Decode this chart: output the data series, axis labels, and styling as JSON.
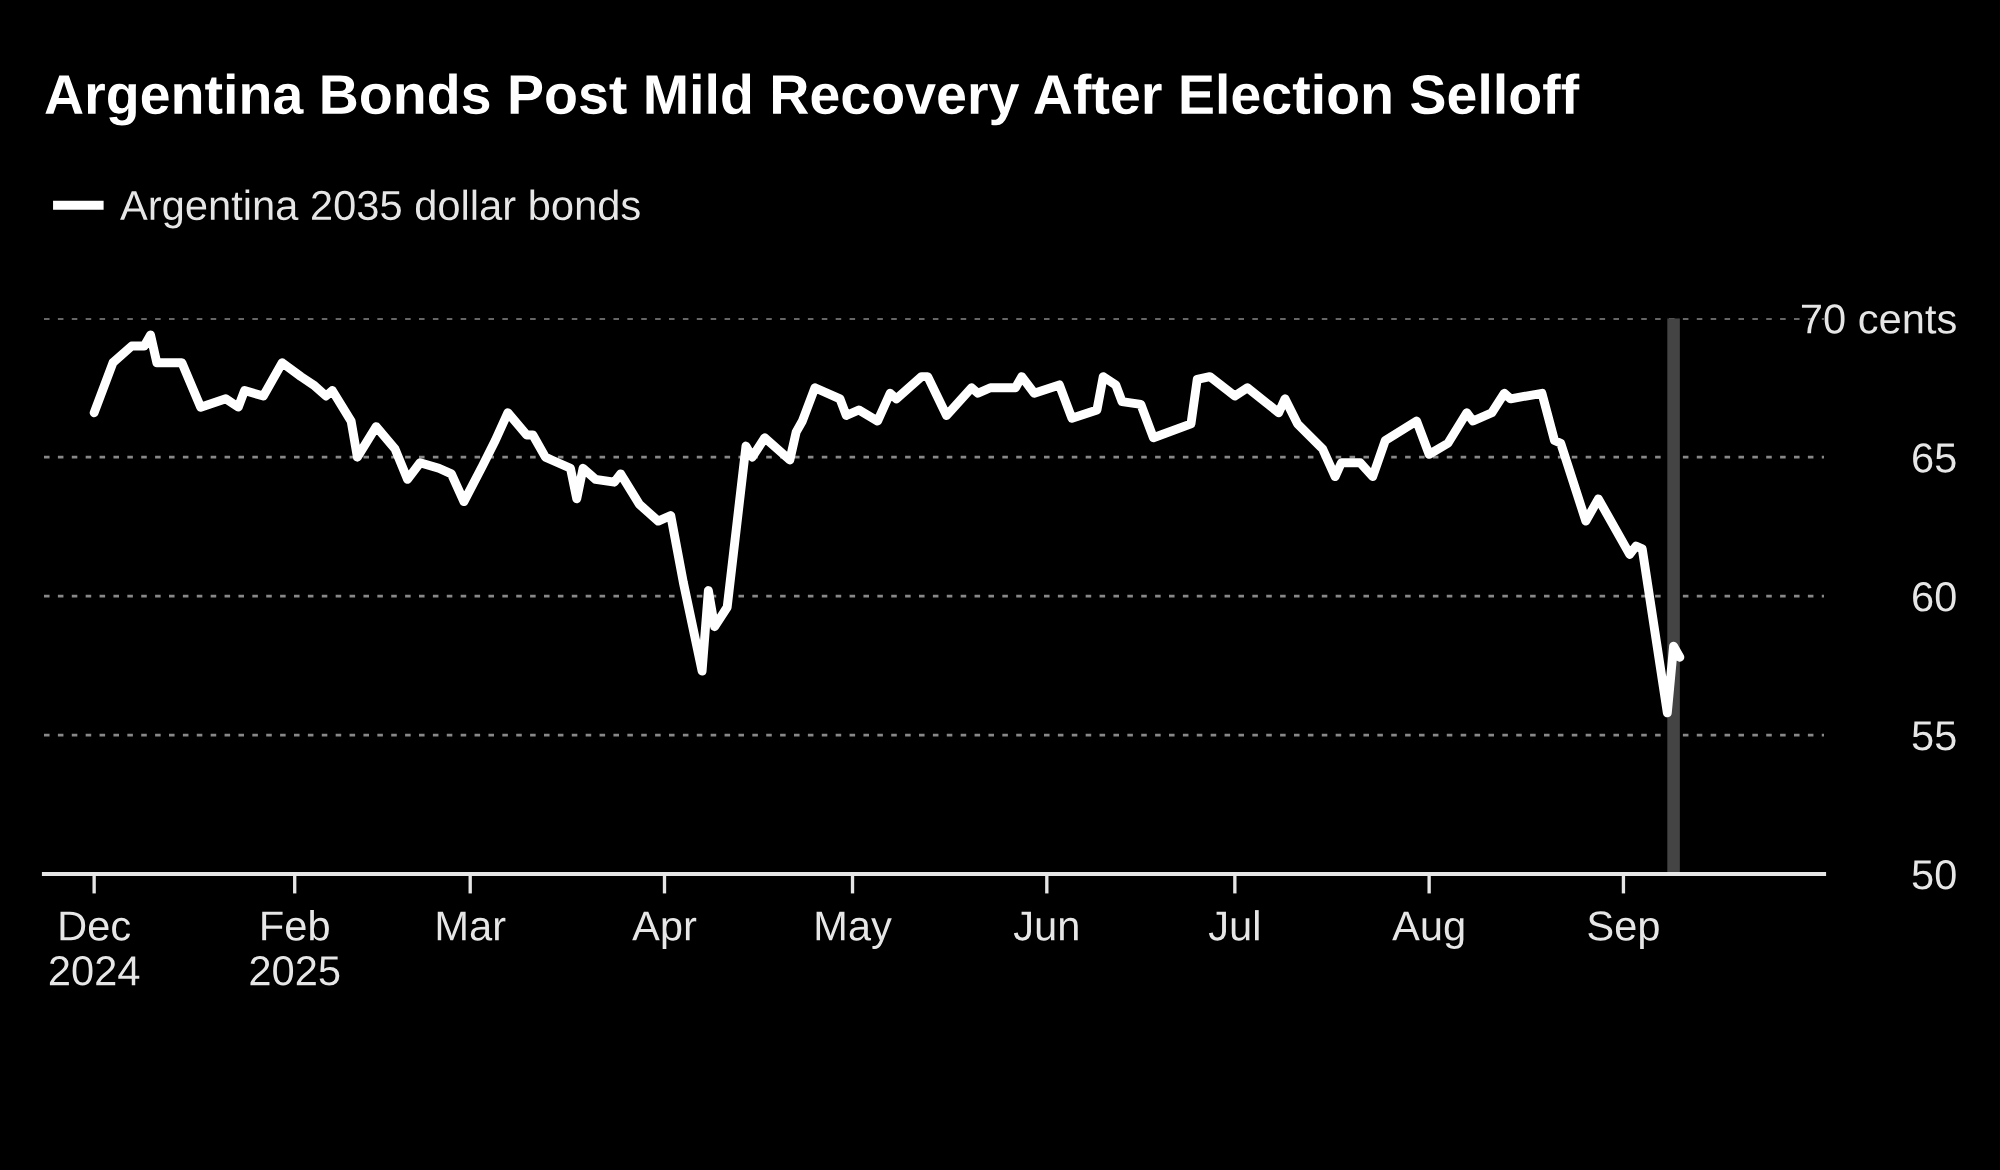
{
  "chart_data": {
    "type": "line",
    "title": "Argentina Bonds Post Mild Recovery After Election Selloff",
    "x": [
      "2024-12-31",
      "2025-01-03",
      "2025-01-06",
      "2025-01-08",
      "2025-01-09",
      "2025-01-10",
      "2025-01-14",
      "2025-01-17",
      "2025-01-21",
      "2025-01-23",
      "2025-01-24",
      "2025-01-27",
      "2025-01-30",
      "2025-02-02",
      "2025-02-04",
      "2025-02-06",
      "2025-02-07",
      "2025-02-10",
      "2025-02-11",
      "2025-02-14",
      "2025-02-17",
      "2025-02-19",
      "2025-02-21",
      "2025-02-24",
      "2025-02-26",
      "2025-02-28",
      "2025-03-03",
      "2025-03-05",
      "2025-03-07",
      "2025-03-10",
      "2025-03-11",
      "2025-03-13",
      "2025-03-14",
      "2025-03-17",
      "2025-03-18",
      "2025-03-19",
      "2025-03-21",
      "2025-03-24",
      "2025-03-25",
      "2025-03-28",
      "2025-03-31",
      "2025-04-02",
      "2025-04-04",
      "2025-04-07",
      "2025-04-08",
      "2025-04-09",
      "2025-04-11",
      "2025-04-14",
      "2025-04-15",
      "2025-04-17",
      "2025-04-21",
      "2025-04-22",
      "2025-04-23",
      "2025-04-25",
      "2025-04-29",
      "2025-04-30",
      "2025-05-02",
      "2025-05-05",
      "2025-05-07",
      "2025-05-08",
      "2025-05-12",
      "2025-05-13",
      "2025-05-16",
      "2025-05-20",
      "2025-05-21",
      "2025-05-23",
      "2025-05-27",
      "2025-05-28",
      "2025-05-30",
      "2025-06-03",
      "2025-06-05",
      "2025-06-09",
      "2025-06-10",
      "2025-06-12",
      "2025-06-13",
      "2025-06-16",
      "2025-06-18",
      "2025-06-24",
      "2025-06-25",
      "2025-06-27",
      "2025-07-01",
      "2025-07-03",
      "2025-07-08",
      "2025-07-09",
      "2025-07-11",
      "2025-07-15",
      "2025-07-17",
      "2025-07-18",
      "2025-07-21",
      "2025-07-23",
      "2025-07-25",
      "2025-07-30",
      "2025-08-01",
      "2025-08-04",
      "2025-08-07",
      "2025-08-08",
      "2025-08-11",
      "2025-08-13",
      "2025-08-14",
      "2025-08-19",
      "2025-08-21",
      "2025-08-22",
      "2025-08-26",
      "2025-08-28",
      "2025-09-02",
      "2025-09-03",
      "2025-09-04",
      "2025-09-08",
      "2025-09-09",
      "2025-09-10"
    ],
    "series": [
      {
        "name": "Argentina 2035 dollar bonds",
        "color": "#ffffff",
        "values": [
          66.6,
          68.4,
          69.0,
          69.0,
          69.4,
          68.4,
          68.4,
          66.8,
          67.1,
          66.8,
          67.4,
          67.2,
          68.4,
          67.9,
          67.6,
          67.2,
          67.4,
          66.3,
          65.0,
          66.1,
          65.3,
          64.2,
          64.8,
          64.6,
          64.4,
          63.4,
          64.7,
          65.6,
          66.6,
          65.8,
          65.8,
          65.0,
          64.9,
          64.6,
          63.5,
          64.6,
          64.2,
          64.1,
          64.4,
          63.3,
          62.7,
          62.9,
          60.5,
          57.3,
          60.2,
          58.9,
          59.6,
          65.4,
          65.0,
          65.7,
          64.9,
          65.9,
          66.3,
          67.5,
          67.1,
          66.5,
          66.7,
          66.3,
          67.3,
          67.1,
          67.9,
          67.9,
          66.5,
          67.5,
          67.3,
          67.5,
          67.5,
          67.9,
          67.3,
          67.6,
          66.4,
          66.7,
          67.9,
          67.6,
          67.0,
          66.9,
          65.7,
          66.2,
          67.8,
          67.9,
          67.2,
          67.5,
          66.6,
          67.1,
          66.2,
          65.3,
          64.3,
          64.8,
          64.8,
          64.3,
          65.6,
          66.3,
          65.1,
          65.5,
          66.6,
          66.3,
          66.6,
          67.3,
          67.1,
          67.3,
          65.6,
          65.5,
          62.7,
          63.5,
          61.5,
          61.8,
          61.7,
          55.8,
          58.2,
          57.8
        ]
      }
    ],
    "xlim": [
      "2024-12-23",
      "2025-10-03"
    ],
    "xticks": [
      {
        "value": "2024-12-31",
        "label": "Dec\n2024"
      },
      {
        "value": "2025-02-01",
        "label": "Feb\n2025"
      },
      {
        "value": "2025-03-01",
        "label": "Mar"
      },
      {
        "value": "2025-04-01",
        "label": "Apr"
      },
      {
        "value": "2025-05-01",
        "label": "May"
      },
      {
        "value": "2025-06-01",
        "label": "Jun"
      },
      {
        "value": "2025-07-01",
        "label": "Jul"
      },
      {
        "value": "2025-08-01",
        "label": "Aug"
      },
      {
        "value": "2025-09-01",
        "label": "Sep"
      }
    ],
    "ylim": [
      50,
      70
    ],
    "yticks": [
      50,
      55,
      60,
      65,
      {
        "value": 70,
        "label": "70 cents"
      }
    ],
    "bands": [
      {
        "axis": "x",
        "from": "2025-09-08",
        "to": "2025-09-10",
        "color": "#444444"
      }
    ],
    "grid": "y",
    "legend": "top left",
    "line_style": "solid",
    "marker": "none"
  }
}
